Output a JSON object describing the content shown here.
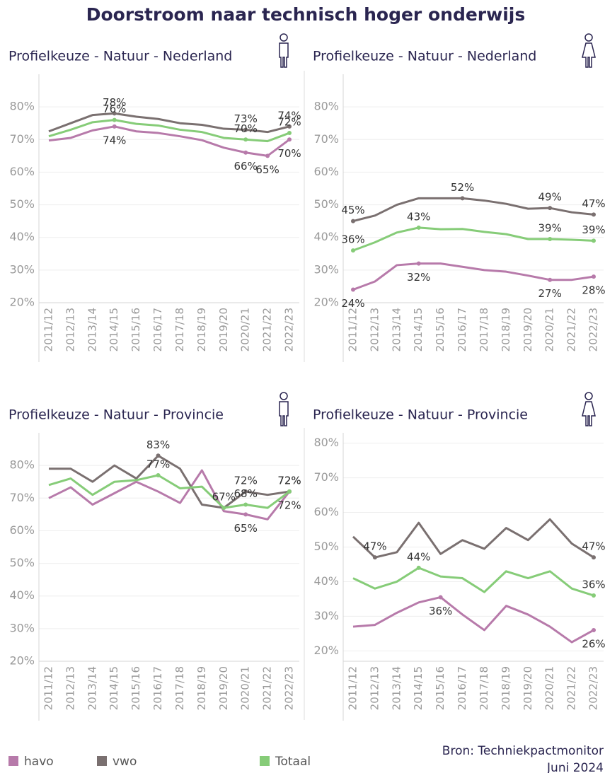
{
  "title": "Doorstroom naar technisch hoger onderwijs",
  "source": [
    "Bron: Techniekpactmonitor",
    "Juni 2024"
  ],
  "chart_data": [
    {
      "type": "line",
      "subtitle": "Profielkeuze - Natuur - Nederland",
      "categories": [
        "2011/12",
        "2012/13",
        "2013/14",
        "2014/15",
        "2015/16",
        "2016/17",
        "2017/18",
        "2018/19",
        "2019/20",
        "2020/21",
        "2021/22",
        "2022/23"
      ],
      "ylim": [
        20,
        90
      ],
      "grid": true,
      "yticks": [
        {
          "value": 20,
          "label": "20%"
        },
        {
          "value": 30,
          "label": "30%"
        },
        {
          "value": 40,
          "label": "40%"
        },
        {
          "value": 50,
          "label": "50%"
        },
        {
          "value": 60,
          "label": "60%"
        },
        {
          "value": 70,
          "label": "70%"
        },
        {
          "value": 80,
          "label": "80%"
        }
      ],
      "series": [
        {
          "name": "havo",
          "color": "#b77aaa",
          "values": [
            69.7,
            70.5,
            72.8,
            74,
            72.5,
            72,
            71,
            69.8,
            67.5,
            66,
            65,
            70
          ],
          "value_labels": [
            null,
            null,
            null,
            "74%",
            null,
            null,
            null,
            null,
            null,
            "66%",
            "65%",
            "70%"
          ]
        },
        {
          "name": "vwo",
          "color": "#7a7070",
          "values": [
            72.5,
            75,
            77.5,
            78,
            77,
            76.3,
            75,
            74.5,
            73.3,
            73,
            72.3,
            74
          ],
          "value_labels": [
            null,
            null,
            null,
            "78%",
            null,
            null,
            null,
            null,
            null,
            "73%",
            null,
            "74%"
          ]
        },
        {
          "name": "Totaal",
          "color": "#86cc78",
          "values": [
            71,
            73,
            75.3,
            76,
            74.8,
            74.3,
            73,
            72.3,
            70.5,
            70,
            69.5,
            72
          ],
          "value_labels": [
            null,
            null,
            null,
            "76%",
            null,
            null,
            null,
            null,
            null,
            "70%",
            null,
            "72%"
          ]
        }
      ]
    },
    {
      "type": "line",
      "subtitle": "Profielkeuze - Natuur - Nederland",
      "categories": [
        "2011/12",
        "2012/13",
        "2013/14",
        "2014/15",
        "2015/16",
        "2016/17",
        "2017/18",
        "2018/19",
        "2019/20",
        "2020/21",
        "2021/22",
        "2022/23"
      ],
      "ylim": [
        20,
        90
      ],
      "grid": true,
      "yticks": [
        {
          "value": 20,
          "label": "20%"
        },
        {
          "value": 30,
          "label": "30%"
        },
        {
          "value": 40,
          "label": "40%"
        },
        {
          "value": 50,
          "label": "50%"
        },
        {
          "value": 60,
          "label": "60%"
        },
        {
          "value": 70,
          "label": "70%"
        },
        {
          "value": 80,
          "label": "80%"
        }
      ],
      "series": [
        {
          "name": "havo",
          "color": "#b77aaa",
          "values": [
            24,
            26.5,
            31.5,
            32,
            32,
            31,
            30,
            29.5,
            28.3,
            27,
            27,
            28
          ],
          "value_labels": [
            "24%",
            null,
            null,
            "32%",
            null,
            null,
            null,
            null,
            null,
            "27%",
            null,
            "28%"
          ]
        },
        {
          "name": "vwo",
          "color": "#7a7070",
          "values": [
            45,
            46.7,
            50,
            52,
            52,
            52,
            51.3,
            50.3,
            48.8,
            49,
            47.7,
            47
          ],
          "value_labels": [
            "45%",
            null,
            null,
            null,
            null,
            "52%",
            null,
            null,
            null,
            "49%",
            null,
            "47%"
          ]
        },
        {
          "name": "Totaal",
          "color": "#86cc78",
          "values": [
            36,
            38.5,
            41.5,
            43,
            42.5,
            42.6,
            41.7,
            41,
            39.5,
            39.5,
            39.3,
            39
          ],
          "value_labels": [
            "36%",
            null,
            null,
            "43%",
            null,
            null,
            null,
            null,
            null,
            "39%",
            null,
            "39%"
          ]
        }
      ]
    },
    {
      "type": "line",
      "subtitle": "Profielkeuze - Natuur - Provincie",
      "categories": [
        "2011/12",
        "2012/13",
        "2013/14",
        "2014/15",
        "2015/16",
        "2016/17",
        "2017/18",
        "2018/19",
        "2019/20",
        "2020/21",
        "2021/22",
        "2022/23"
      ],
      "ylim": [
        20,
        90
      ],
      "grid": true,
      "yticks": [
        {
          "value": 20,
          "label": "20%"
        },
        {
          "value": 30,
          "label": "30%"
        },
        {
          "value": 40,
          "label": "40%"
        },
        {
          "value": 50,
          "label": "50%"
        },
        {
          "value": 60,
          "label": "60%"
        },
        {
          "value": 70,
          "label": "70%"
        },
        {
          "value": 80,
          "label": "80%"
        }
      ],
      "series": [
        {
          "name": "havo",
          "color": "#b77aaa",
          "values": [
            70,
            73.3,
            68,
            71.5,
            75,
            72,
            68.5,
            78.5,
            66,
            65,
            63.5,
            72
          ],
          "value_labels": [
            null,
            null,
            null,
            null,
            null,
            null,
            null,
            null,
            null,
            "65%",
            null,
            "72%"
          ]
        },
        {
          "name": "vwo",
          "color": "#7a7070",
          "values": [
            79,
            79,
            75,
            80,
            76,
            83,
            79,
            68,
            67,
            72,
            71,
            72
          ],
          "value_labels": [
            null,
            null,
            null,
            null,
            null,
            "83%",
            null,
            null,
            null,
            "72%",
            null,
            "72%"
          ]
        },
        {
          "name": "Totaal",
          "color": "#86cc78",
          "values": [
            74,
            76,
            71,
            75,
            75.5,
            77,
            73,
            73.5,
            67,
            68,
            67,
            72
          ],
          "value_labels": [
            null,
            null,
            null,
            null,
            null,
            "77%",
            null,
            null,
            "67%",
            "68%",
            null,
            "72%"
          ]
        }
      ]
    },
    {
      "type": "line",
      "subtitle": "Profielkeuze - Natuur - Provincie",
      "categories": [
        "2011/12",
        "2012/13",
        "2013/14",
        "2014/15",
        "2015/16",
        "2016/17",
        "2017/18",
        "2018/19",
        "2019/20",
        "2020/21",
        "2021/22",
        "2022/23"
      ],
      "ylim": [
        17,
        83
      ],
      "grid": true,
      "yticks": [
        {
          "value": 20,
          "label": "20%"
        },
        {
          "value": 30,
          "label": "30%"
        },
        {
          "value": 40,
          "label": "40%"
        },
        {
          "value": 50,
          "label": "50%"
        },
        {
          "value": 60,
          "label": "60%"
        },
        {
          "value": 70,
          "label": "70%"
        },
        {
          "value": 80,
          "label": "80%"
        }
      ],
      "series": [
        {
          "name": "havo",
          "color": "#b77aaa",
          "values": [
            27,
            27.5,
            31,
            34,
            35.5,
            30.5,
            26,
            33,
            30.5,
            27,
            22.5,
            26
          ],
          "value_labels": [
            null,
            null,
            null,
            null,
            "36%",
            null,
            null,
            null,
            null,
            null,
            null,
            "26%"
          ]
        },
        {
          "name": "vwo",
          "color": "#7a7070",
          "values": [
            53,
            47,
            48.5,
            57,
            48,
            52,
            49.5,
            55.5,
            52,
            58,
            51,
            47
          ],
          "value_labels": [
            null,
            "47%",
            null,
            null,
            null,
            null,
            null,
            null,
            null,
            null,
            null,
            "47%"
          ]
        },
        {
          "name": "Totaal",
          "color": "#86cc78",
          "values": [
            41,
            38,
            40,
            44,
            41.5,
            41,
            37,
            43,
            41,
            43,
            38,
            36
          ],
          "value_labels": [
            null,
            null,
            null,
            "44%",
            null,
            null,
            null,
            null,
            null,
            null,
            null,
            "36%"
          ]
        }
      ]
    }
  ]
}
